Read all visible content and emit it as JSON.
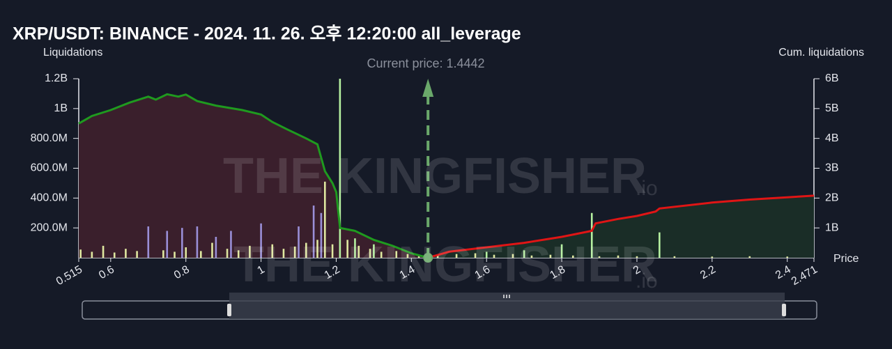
{
  "chart_data": {
    "type": "liquidation",
    "title": "XRP/USDT: BINANCE - 2024. 11. 26. 오후 12:20:00 all_leverage",
    "ylabel": "Liquidations",
    "y2label": "Cum. liquidations",
    "xlabel": "Price",
    "annotation": "Current price: 1.4442",
    "current_price": 1.4442,
    "watermark": "THE KINGFISHER",
    "watermark_suffix": ".io",
    "xlim": [
      0.515,
      2.471
    ],
    "xticks": [
      0.515,
      0.6,
      0.8,
      1,
      1.2,
      1.4,
      1.6,
      1.8,
      2,
      2.2,
      2.4,
      2.471
    ],
    "ylim": [
      0,
      1200000000
    ],
    "yticks": [
      {
        "value": 200000000,
        "label": "200.0M"
      },
      {
        "value": 400000000,
        "label": "400.0M"
      },
      {
        "value": 600000000,
        "label": "600.0M"
      },
      {
        "value": 800000000,
        "label": "800.0M"
      },
      {
        "value": 1000000000,
        "label": "1B"
      },
      {
        "value": 1200000000,
        "label": "1.2B"
      }
    ],
    "y2lim": [
      0,
      6000000000
    ],
    "y2ticks": [
      {
        "value": 1000000000,
        "label": "1B"
      },
      {
        "value": 2000000000,
        "label": "2B"
      },
      {
        "value": 3000000000,
        "label": "3B"
      },
      {
        "value": 4000000000,
        "label": "4B"
      },
      {
        "value": 5000000000,
        "label": "5B"
      },
      {
        "value": 6000000000,
        "label": "6B"
      }
    ],
    "bars": [
      {
        "color": "#dfe8a0",
        "x": [
          0.52,
          0.55,
          0.58,
          0.61,
          0.64,
          0.67,
          0.7,
          0.74,
          0.77,
          0.8,
          0.84,
          0.87,
          0.91,
          0.94,
          0.97,
          1.0,
          1.03,
          1.06,
          1.09,
          1.12,
          1.15,
          1.17,
          1.19,
          1.23,
          1.26,
          1.29,
          1.32,
          1.36,
          1.39,
          1.42,
          1.47,
          1.52,
          1.57,
          1.62,
          1.67,
          1.72,
          1.77,
          1.83,
          1.9,
          1.95,
          2.0,
          2.1,
          2.2,
          2.3,
          2.4
        ],
        "values": [
          55000000,
          40000000,
          80000000,
          35000000,
          60000000,
          45000000,
          30000000,
          50000000,
          40000000,
          70000000,
          45000000,
          100000000,
          60000000,
          50000000,
          80000000,
          70000000,
          90000000,
          60000000,
          75000000,
          100000000,
          120000000,
          510000000,
          90000000,
          120000000,
          80000000,
          60000000,
          40000000,
          45000000,
          25000000,
          20000000,
          15000000,
          25000000,
          30000000,
          20000000,
          25000000,
          15000000,
          20000000,
          15000000,
          10000000,
          15000000,
          10000000,
          10000000,
          8000000,
          10000000,
          8000000
        ]
      },
      {
        "color": "#9a8fd8",
        "x": [
          0.7,
          0.75,
          0.79,
          0.83,
          0.88,
          0.92,
          1.0,
          1.1,
          1.14,
          1.16
        ],
        "values": [
          210000000,
          180000000,
          200000000,
          210000000,
          140000000,
          180000000,
          230000000,
          210000000,
          350000000,
          300000000
        ]
      },
      {
        "color": "#b5f0a0",
        "x": [
          1.21,
          1.25,
          1.3,
          1.6,
          1.7,
          1.8,
          1.88,
          2.06
        ],
        "values": [
          1200000000,
          130000000,
          90000000,
          40000000,
          50000000,
          90000000,
          300000000,
          170000000
        ]
      }
    ],
    "series": [
      {
        "color": "#1f9a1f",
        "fill": "#3a1f2c",
        "axis": "y2",
        "x": [
          0.515,
          0.55,
          0.6,
          0.65,
          0.7,
          0.72,
          0.75,
          0.78,
          0.8,
          0.83,
          0.88,
          0.95,
          1.0,
          1.03,
          1.07,
          1.12,
          1.15,
          1.17,
          1.19,
          1.2,
          1.21,
          1.25,
          1.3,
          1.35,
          1.4,
          1.4442
        ],
        "values": [
          4500000000,
          4750000000,
          4950000000,
          5200000000,
          5400000000,
          5300000000,
          5480000000,
          5400000000,
          5470000000,
          5250000000,
          5100000000,
          4950000000,
          4800000000,
          4550000000,
          4300000000,
          4000000000,
          3800000000,
          2900000000,
          2500000000,
          2200000000,
          1000000000,
          900000000,
          600000000,
          400000000,
          150000000,
          0
        ]
      },
      {
        "color": "#e01515",
        "fill": "#1a2d27",
        "axis": "y2",
        "x": [
          1.4442,
          1.5,
          1.6,
          1.7,
          1.8,
          1.88,
          1.89,
          1.95,
          2.0,
          2.05,
          2.06,
          2.2,
          2.3,
          2.471
        ],
        "values": [
          0,
          200000000,
          350000000,
          500000000,
          700000000,
          900000000,
          1150000000,
          1300000000,
          1400000000,
          1550000000,
          1650000000,
          1850000000,
          1950000000,
          2080000000
        ]
      }
    ]
  }
}
